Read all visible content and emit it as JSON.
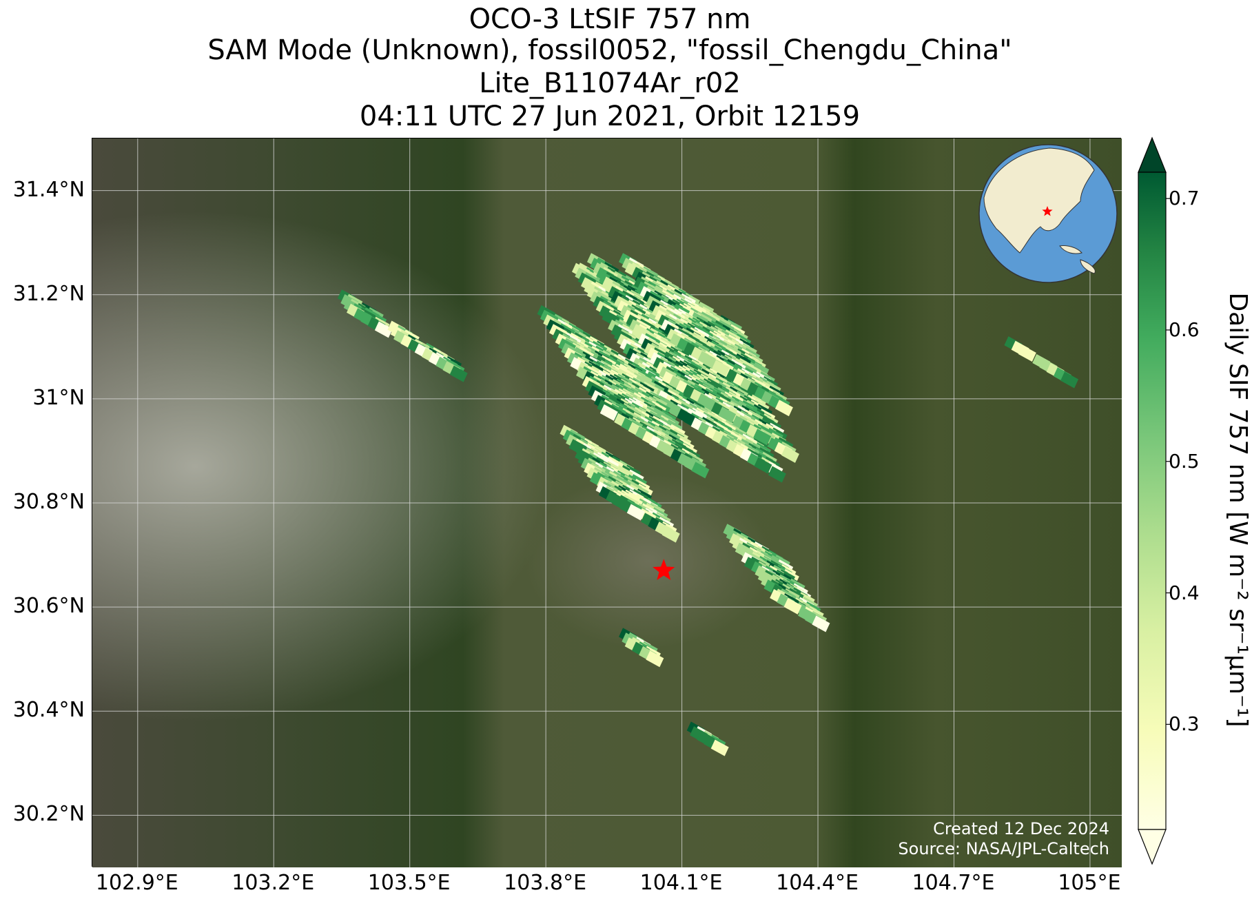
{
  "title": {
    "line1": "OCO-3 LtSIF 757 nm",
    "line2": "SAM Mode (Unknown), fossil0052, \"fossil_Chengdu_China\"",
    "line3": "Lite_B11074Ar_r02",
    "line4": "04:11 UTC 27 Jun 2021, Orbit 12159"
  },
  "map": {
    "lon_range": [
      102.8,
      105.07
    ],
    "lat_range": [
      30.1,
      31.5
    ],
    "lat_ticks": [
      "31.4°N",
      "31.2°N",
      "31°N",
      "30.8°N",
      "30.6°N",
      "30.4°N",
      "30.2°N"
    ],
    "lat_values": [
      31.4,
      31.2,
      31.0,
      30.8,
      30.6,
      30.4,
      30.2
    ],
    "lon_ticks": [
      "102.9°E",
      "103.2°E",
      "103.5°E",
      "103.8°E",
      "104.1°E",
      "104.4°E",
      "104.7°E",
      "105°E"
    ],
    "lon_values": [
      102.9,
      103.2,
      103.5,
      103.8,
      104.1,
      104.4,
      104.7,
      105.0
    ],
    "target": {
      "lon": 104.06,
      "lat": 30.67,
      "marker": "red-star"
    },
    "basemap": "satellite imagery",
    "credits": {
      "created": "Created 12 Dec 2024",
      "source": "Source: NASA/JPL-Caltech"
    }
  },
  "colorbar": {
    "colormap": "YlGn",
    "range": [
      0.22,
      0.72
    ],
    "ticks": [
      "0.7",
      "0.6",
      "0.5",
      "0.4",
      "0.3"
    ],
    "tick_values": [
      0.7,
      0.6,
      0.5,
      0.4,
      0.3
    ],
    "extend": "both",
    "label": "Daily SIF 757 nm [W m⁻² sr⁻¹μm⁻¹]"
  },
  "colors": {
    "marker": "#ff0000",
    "ocean": "#5b9bd5",
    "land": "#f2eccf"
  }
}
